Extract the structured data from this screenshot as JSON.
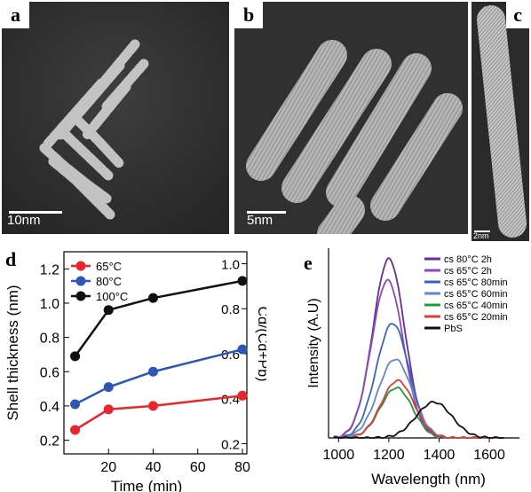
{
  "panels": {
    "a": {
      "label": "a",
      "scale": "10nm"
    },
    "b": {
      "label": "b",
      "scale": "5nm"
    },
    "c": {
      "label": "c",
      "scale": "2nm"
    },
    "d": {
      "label": "d"
    },
    "e": {
      "label": "e"
    }
  },
  "chart_data": [
    {
      "type": "line",
      "panel": "d",
      "xlabel": "Time (min)",
      "ylabel": "Shell thickness (nm)",
      "ylabel_right": "Cd/(Cd+Pb)",
      "xticks": [
        "20",
        "40",
        "60",
        "80"
      ],
      "yticks": [
        "0.2",
        "0.4",
        "0.6",
        "0.8",
        "1.0",
        "1.2"
      ],
      "yticks_right": [
        "0.2",
        "0.4",
        "0.6",
        "0.8",
        "1.0"
      ],
      "xlim": [
        0,
        82
      ],
      "ylim": [
        0.12,
        1.3
      ],
      "legend_position": "top-left",
      "series": [
        {
          "name": "65°C",
          "color": "#e8262b",
          "x": [
            5,
            20,
            40,
            80
          ],
          "y": [
            0.26,
            0.38,
            0.4,
            0.46
          ]
        },
        {
          "name": "80°C",
          "color": "#2e56b4",
          "x": [
            5,
            20,
            40,
            80
          ],
          "y": [
            0.41,
            0.51,
            0.6,
            0.73
          ]
        },
        {
          "name": "100°C",
          "color": "#111111",
          "x": [
            5,
            20,
            40,
            80
          ],
          "y": [
            0.69,
            0.96,
            1.03,
            1.13
          ]
        }
      ]
    },
    {
      "type": "line",
      "panel": "e",
      "xlabel": "Wavelength (nm)",
      "ylabel": "Intensity (A.U)",
      "xticks": [
        "1000",
        "1200",
        "1400",
        "1600"
      ],
      "xlim": [
        960,
        1720
      ],
      "legend_position": "top-right",
      "series": [
        {
          "name": "cs 80°C 2h",
          "color": "#6a2c9b",
          "center": 1200,
          "width": 90,
          "peak": 1.0
        },
        {
          "name": "cs 65°C 2h",
          "color": "#8a4bb5",
          "center": 1195,
          "width": 90,
          "peak": 0.88
        },
        {
          "name": "cs 65°C 80min",
          "color": "#3a66b8",
          "center": 1215,
          "width": 92,
          "peak": 0.64
        },
        {
          "name": "cs 65°C 60min",
          "color": "#6684cf",
          "center": 1225,
          "width": 95,
          "peak": 0.44
        },
        {
          "name": "cs 65°C 40min",
          "color": "#1f9a3a",
          "center": 1230,
          "width": 90,
          "peak": 0.28
        },
        {
          "name": "cs 65°C 20min",
          "color": "#e33b3b",
          "center": 1235,
          "width": 92,
          "peak": 0.32
        },
        {
          "name": "PbS",
          "color": "#111111",
          "center": 1380,
          "width": 100,
          "peak": 0.2
        }
      ]
    }
  ]
}
